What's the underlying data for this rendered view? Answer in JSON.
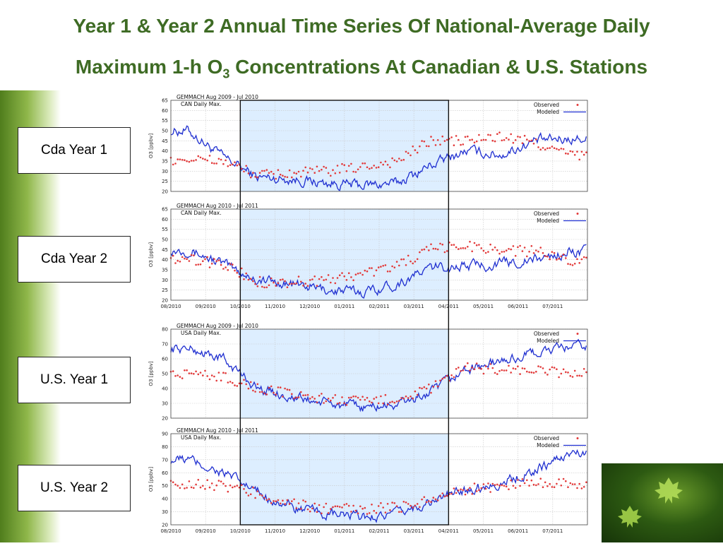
{
  "title": {
    "line1": "Year 1 & Year 2 Annual Time Series Of National-Average Daily",
    "line2_pre": "Maximum 1-h O",
    "line2_sub": "3",
    "line2_post": " Concentrations At Canadian & U.S. Stations"
  },
  "labels": [
    "Cda Year 1",
    "Cda Year 2",
    "U.S. Year 1",
    "U.S. Year 2"
  ],
  "colors": {
    "observed": "#e23a3a",
    "modeled": "#1f2fd0",
    "highlight": "#ddeeff",
    "title": "#3e6b24"
  },
  "chart_data": [
    {
      "type": "line",
      "title": "GEMMACH Aug 2009 - Jul 2010",
      "subtitle": "CAN Daily Max.",
      "ylabel": "O3 [ppbv]",
      "ylim": [
        20,
        65
      ],
      "yticks": [
        20,
        25,
        30,
        35,
        40,
        45,
        50,
        55,
        60,
        65
      ],
      "x_months": [
        "08/2010",
        "09/2010",
        "10/2010",
        "11/2010",
        "12/2010",
        "01/2011",
        "02/2011",
        "03/2011",
        "04/2011",
        "05/2011",
        "06/2011",
        "07/2011"
      ],
      "show_xticks": false,
      "legend": "top-right",
      "shaded_months": [
        2.0,
        8.0
      ],
      "series": [
        {
          "name": "Observed",
          "style": "dots",
          "monthly": [
            36,
            35,
            28,
            29,
            30,
            32,
            35,
            45,
            45,
            47,
            44,
            38
          ]
        },
        {
          "name": "Modeled",
          "style": "line",
          "monthly": [
            50,
            37,
            27,
            26,
            24,
            23,
            24,
            33,
            40,
            38,
            45,
            46
          ]
        }
      ]
    },
    {
      "type": "line",
      "title": "GEMMACH Aug 2010 - Jul 2011",
      "subtitle": "CAN Daily Max.",
      "ylabel": "O3 [ppbv]",
      "ylim": [
        20,
        65
      ],
      "yticks": [
        20,
        25,
        30,
        35,
        40,
        45,
        50,
        55,
        60,
        65
      ],
      "x_months": [
        "08/2010",
        "09/2010",
        "10/2010",
        "11/2010",
        "12/2010",
        "01/2011",
        "02/2011",
        "03/2011",
        "04/2011",
        "05/2011",
        "06/2011",
        "07/2011"
      ],
      "show_xticks": true,
      "legend": "top-right",
      "shaded_months": [
        2.0,
        8.0
      ],
      "series": [
        {
          "name": "Observed",
          "style": "dots",
          "monthly": [
            40,
            38,
            29,
            29,
            30,
            33,
            37,
            45,
            47,
            45,
            44,
            40
          ]
        },
        {
          "name": "Modeled",
          "style": "line",
          "monthly": [
            45,
            38,
            30,
            28,
            25,
            24,
            28,
            36,
            37,
            38,
            40,
            44
          ]
        }
      ]
    },
    {
      "type": "line",
      "title": "GEMMACH Aug 2009 - Jul 2010",
      "subtitle": "USA Daily Max.",
      "ylabel": "O3 [ppbv]",
      "ylim": [
        20,
        80
      ],
      "yticks": [
        20,
        30,
        40,
        50,
        60,
        70,
        80
      ],
      "x_months": [
        "08/2010",
        "09/2010",
        "10/2010",
        "11/2010",
        "12/2010",
        "01/2011",
        "02/2011",
        "03/2011",
        "04/2011",
        "05/2011",
        "06/2011",
        "07/2011"
      ],
      "show_xticks": false,
      "legend": "top-right",
      "shaded_months": [
        2.0,
        8.0
      ],
      "series": [
        {
          "name": "Observed",
          "style": "dots",
          "monthly": [
            50,
            48,
            40,
            36,
            33,
            31,
            33,
            40,
            54,
            53,
            52,
            50
          ]
        },
        {
          "name": "Modeled",
          "style": "line",
          "monthly": [
            67,
            60,
            40,
            34,
            30,
            27,
            29,
            37,
            53,
            58,
            64,
            68
          ]
        }
      ]
    },
    {
      "type": "line",
      "title": "GEMMACH Aug 2010 - Jul 2011",
      "subtitle": "USA Daily Max.",
      "ylabel": "O3 [ppbv]",
      "ylim": [
        20,
        90
      ],
      "yticks": [
        20,
        30,
        40,
        50,
        60,
        70,
        80,
        90
      ],
      "x_months": [
        "08/2010",
        "09/2010",
        "10/2010",
        "11/2010",
        "12/2010",
        "01/2011",
        "02/2011",
        "03/2011",
        "04/2011",
        "05/2011",
        "06/2011",
        "07/2011"
      ],
      "show_xticks": true,
      "legend": "top-right",
      "shaded_months": [
        2.0,
        8.0
      ],
      "series": [
        {
          "name": "Observed",
          "style": "dots",
          "monthly": [
            52,
            50,
            44,
            36,
            32,
            32,
            33,
            40,
            47,
            50,
            53,
            52
          ]
        },
        {
          "name": "Modeled",
          "style": "line",
          "monthly": [
            70,
            60,
            45,
            33,
            28,
            26,
            28,
            38,
            47,
            52,
            62,
            75
          ]
        }
      ]
    }
  ]
}
